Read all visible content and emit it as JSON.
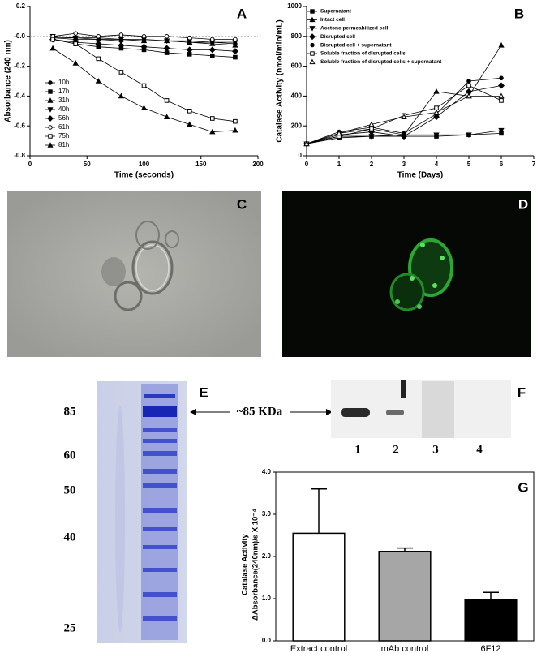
{
  "chart_data": [
    {
      "type": "line",
      "panel_label": "A",
      "xlabel": "Time (seconds)",
      "ylabel": "Absorbance (240 nm)",
      "xlim": [
        0,
        200
      ],
      "xticks": [
        0,
        50,
        100,
        150,
        200
      ],
      "ylim": [
        -0.8,
        0.2
      ],
      "yticks": [
        -0.8,
        -0.6,
        -0.4,
        -0.2,
        {
          "value": 0,
          "label": "-0.0"
        },
        0.2
      ],
      "zero_line": true,
      "color": "#000000",
      "x": [
        20,
        40,
        60,
        80,
        100,
        120,
        140,
        160,
        180
      ],
      "series": [
        {
          "name": "10h",
          "marker": "circle",
          "values": [
            -0.01,
            -0.02,
            -0.02,
            -0.03,
            -0.03,
            -0.03,
            -0.04,
            -0.04,
            -0.05
          ]
        },
        {
          "name": "17h",
          "marker": "square",
          "values": [
            -0.02,
            -0.05,
            -0.07,
            -0.08,
            -0.09,
            -0.11,
            -0.12,
            -0.13,
            -0.14
          ]
        },
        {
          "name": "31h",
          "marker": "triangle",
          "values": [
            -0.01,
            -0.01,
            -0.02,
            -0.02,
            -0.03,
            -0.03,
            -0.04,
            -0.05,
            -0.06
          ]
        },
        {
          "name": "40h",
          "marker": "triangle-down",
          "values": [
            0,
            -0.01,
            -0.01,
            -0.02,
            -0.02,
            -0.03,
            -0.03,
            -0.04,
            -0.04
          ]
        },
        {
          "name": "56h",
          "marker": "diamond",
          "values": [
            -0.02,
            -0.04,
            -0.05,
            -0.06,
            -0.07,
            -0.08,
            -0.09,
            -0.09,
            -0.1
          ]
        },
        {
          "name": "61h",
          "marker": "circle-open",
          "values": [
            0,
            0.02,
            0,
            0.01,
            0,
            0,
            -0.01,
            -0.02,
            -0.02
          ]
        },
        {
          "name": "75h",
          "marker": "square-open",
          "values": [
            -0.02,
            -0.05,
            -0.15,
            -0.24,
            -0.33,
            -0.43,
            -0.5,
            -0.55,
            -0.57
          ]
        },
        {
          "name": "81h",
          "marker": "triangle",
          "values": [
            -0.08,
            -0.18,
            -0.3,
            -0.4,
            -0.48,
            -0.54,
            -0.59,
            -0.64,
            -0.63
          ]
        }
      ]
    },
    {
      "type": "line",
      "panel_label": "B",
      "xlabel": "Time (Days)",
      "ylabel": "Catalase Activity (nmol/min/mL)",
      "xlim": [
        0,
        7
      ],
      "xticks": [
        0,
        1,
        2,
        3,
        4,
        5,
        6,
        7
      ],
      "ylim": [
        0,
        1000
      ],
      "yticks": [
        0,
        200,
        400,
        600,
        800,
        1000
      ],
      "color": "#000000",
      "x": [
        0,
        1,
        2,
        3,
        4,
        5,
        6
      ],
      "series": [
        {
          "name": "Supernatant",
          "marker": "square",
          "values": [
            80,
            120,
            130,
            130,
            130,
            140,
            150
          ]
        },
        {
          "name": "Intact cell",
          "marker": "triangle",
          "values": [
            80,
            150,
            180,
            140,
            430,
            400,
            740
          ]
        },
        {
          "name": "Acetone permeabilized cell",
          "marker": "triangle-down",
          "values": [
            80,
            130,
            130,
            140,
            140,
            140,
            170
          ]
        },
        {
          "name": "Disrupted cell",
          "marker": "diamond",
          "values": [
            80,
            140,
            160,
            130,
            260,
            430,
            470
          ]
        },
        {
          "name": "Disrupted cell + supernatant",
          "marker": "circle",
          "values": [
            80,
            160,
            190,
            150,
            280,
            500,
            520
          ]
        },
        {
          "name": "Soluble fraction of disrupted cells",
          "marker": "square-open",
          "values": [
            80,
            130,
            180,
            270,
            320,
            470,
            370
          ]
        },
        {
          "name": "Soluble fraction of disrupted cells + supernatant",
          "marker": "triangle-open",
          "values": [
            80,
            150,
            210,
            260,
            290,
            400,
            400
          ]
        }
      ]
    },
    {
      "type": "bar",
      "panel_label": "G",
      "ylabel": [
        "Catalase Activity",
        "ΔAbsorbance(240nm)/s X 10⁻⁴"
      ],
      "ylim": [
        0,
        4
      ],
      "yticks": [
        {
          "value": 0,
          "label": "0.0"
        },
        {
          "value": 1,
          "label": "1.0"
        },
        {
          "value": 2,
          "label": "2.0"
        },
        {
          "value": 3,
          "label": "3.0"
        },
        {
          "value": 4,
          "label": "4.0"
        }
      ],
      "categories": [
        "Extract control",
        "mAb control",
        "6F12"
      ],
      "values": [
        2.55,
        2.12,
        0.98
      ],
      "errors": [
        1.05,
        0.08,
        0.17
      ],
      "colors": [
        "#ffffff",
        "#a6a6a6",
        "#000000"
      ]
    }
  ],
  "images": {
    "c_label": "C",
    "d_label": "D"
  },
  "gel_e": {
    "label": "E",
    "markers": [
      "85",
      "60",
      "50",
      "40",
      "25"
    ]
  },
  "annotation": "~85 KDa",
  "blot_f": {
    "label": "F",
    "lanes": [
      "1",
      "2",
      "3",
      "4"
    ]
  }
}
